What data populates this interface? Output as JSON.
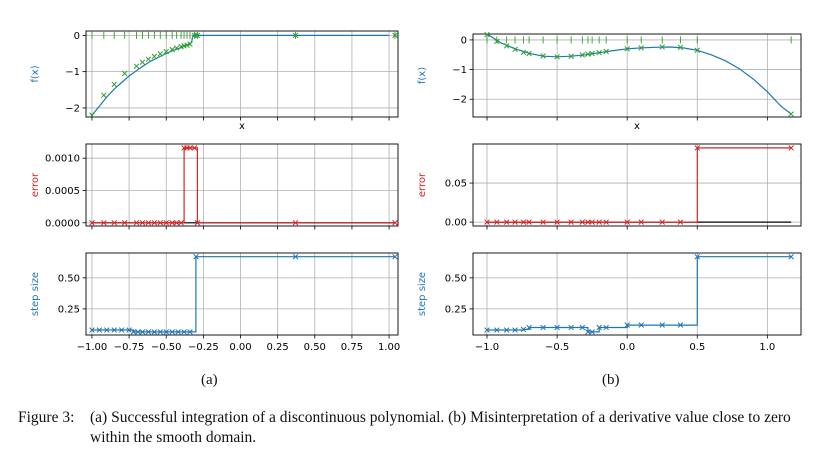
{
  "caption": {
    "label": "Figure 3:",
    "text": "(a) Successful integration of a discontinuous polynomial. (b) Misinterpretation of a derivative value close to zero within the smooth domain."
  },
  "subfigure_labels": [
    "(a)",
    "(b)"
  ],
  "colors": {
    "blue": "#1f77b4",
    "green": "#2ca02c",
    "red": "#d62728",
    "black": "#000000",
    "grid": "#b0b0b0"
  },
  "chart_data": [
    {
      "type": "line",
      "panel": "a-top",
      "ylabel": "f(x)",
      "xlabel": "x",
      "xlim": [
        -1.04,
        1.06
      ],
      "ylim": [
        -2.25,
        0.12
      ],
      "yticks": [
        0,
        -1,
        -2
      ],
      "ytick_labels": [
        "0",
        "−1",
        "−2"
      ],
      "xticks": [
        -1.0,
        -0.75,
        -0.5,
        -0.25,
        0.0,
        0.25,
        0.5,
        0.75,
        1.0
      ],
      "show_xtick_labels": false,
      "series": [
        {
          "kind": "line",
          "color": "blue",
          "x": [
            -1.0,
            -0.95,
            -0.9,
            -0.85,
            -0.8,
            -0.75,
            -0.7,
            -0.65,
            -0.6,
            -0.55,
            -0.5,
            -0.45,
            -0.4,
            -0.38,
            -0.36,
            -0.34,
            -0.33,
            -0.32,
            -0.3,
            0.0,
            0.5,
            1.0
          ],
          "y": [
            -2.2,
            -1.95,
            -1.7,
            -1.48,
            -1.3,
            -1.12,
            -0.97,
            -0.83,
            -0.7,
            -0.6,
            -0.5,
            -0.41,
            -0.34,
            -0.3,
            -0.27,
            -0.22,
            -0.2,
            0.0,
            0.0,
            0.0,
            0.0,
            0.0
          ]
        },
        {
          "kind": "scatter",
          "marker": "x",
          "color": "green",
          "x": [
            -1.0,
            -0.92,
            -0.85,
            -0.78,
            -0.7,
            -0.66,
            -0.62,
            -0.58,
            -0.54,
            -0.5,
            -0.46,
            -0.43,
            -0.4,
            -0.38,
            -0.36,
            -0.34,
            -0.31,
            -0.29,
            0.37,
            1.04
          ],
          "y": [
            -2.2,
            -1.65,
            -1.35,
            -1.05,
            -0.85,
            -0.74,
            -0.66,
            -0.58,
            -0.51,
            -0.45,
            -0.39,
            -0.35,
            -0.31,
            -0.29,
            -0.27,
            -0.24,
            0.0,
            0.0,
            0.0,
            0.0
          ]
        },
        {
          "kind": "scatter",
          "marker": "|",
          "color": "green",
          "x": [
            -1.0,
            -0.92,
            -0.85,
            -0.78,
            -0.7,
            -0.66,
            -0.62,
            -0.58,
            -0.54,
            -0.5,
            -0.46,
            -0.43,
            -0.4,
            -0.38,
            -0.36,
            -0.34,
            -0.31,
            -0.29,
            0.37,
            1.04
          ],
          "y": [
            0,
            0,
            0,
            0,
            0,
            0,
            0,
            0,
            0,
            0,
            0,
            0,
            0,
            0,
            0,
            0,
            0,
            0,
            0,
            0
          ]
        }
      ]
    },
    {
      "type": "line",
      "panel": "a-mid",
      "ylabel": "error",
      "xlim": [
        -1.04,
        1.06
      ],
      "ylim": [
        -5e-05,
        0.00122
      ],
      "yticks": [
        0,
        0.0005,
        0.001
      ],
      "ytick_labels": [
        "0.0000",
        "0.0005",
        "0.0010"
      ],
      "xticks": [
        -1.0,
        -0.75,
        -0.5,
        -0.25,
        0.0,
        0.25,
        0.5,
        0.75,
        1.0
      ],
      "show_xtick_labels": false,
      "series": [
        {
          "kind": "line",
          "color": "black",
          "x": [
            -1.0,
            1.04
          ],
          "y": [
            0,
            0
          ]
        },
        {
          "kind": "step",
          "marker": "x",
          "color": "red",
          "x": [
            -1.0,
            -0.92,
            -0.85,
            -0.78,
            -0.7,
            -0.66,
            -0.62,
            -0.58,
            -0.54,
            -0.5,
            -0.46,
            -0.43,
            -0.4,
            -0.38,
            -0.36,
            -0.34,
            -0.31,
            -0.29,
            0.37,
            1.04
          ],
          "y": [
            0,
            0,
            0,
            0,
            0,
            0,
            0,
            0,
            0,
            0,
            0,
            0,
            0,
            0.00116,
            0.00116,
            0.00116,
            0.00116,
            0,
            0,
            0
          ]
        }
      ]
    },
    {
      "type": "line",
      "panel": "a-bot",
      "ylabel": "step size",
      "xlim": [
        -1.04,
        1.06
      ],
      "ylim": [
        0.04,
        0.7
      ],
      "yticks": [
        0.25,
        0.5
      ],
      "ytick_labels": [
        "0.25",
        "0.50"
      ],
      "xticks": [
        -1.0,
        -0.75,
        -0.5,
        -0.25,
        0.0,
        0.25,
        0.5,
        0.75,
        1.0
      ],
      "xtick_labels": [
        "−1.00",
        "−0.75",
        "−0.50",
        "−0.25",
        "0.00",
        "0.25",
        "0.50",
        "0.75",
        "1.00"
      ],
      "series": [
        {
          "kind": "step",
          "marker": "x",
          "color": "blue",
          "x": [
            -1.0,
            -0.95,
            -0.9,
            -0.85,
            -0.8,
            -0.75,
            -0.72,
            -0.69,
            -0.66,
            -0.62,
            -0.58,
            -0.54,
            -0.5,
            -0.46,
            -0.42,
            -0.38,
            -0.34,
            -0.3,
            0.37,
            1.04
          ],
          "y": [
            0.08,
            0.08,
            0.08,
            0.08,
            0.08,
            0.08,
            0.065,
            0.065,
            0.065,
            0.065,
            0.065,
            0.065,
            0.065,
            0.065,
            0.065,
            0.065,
            0.065,
            0.67,
            0.67,
            0.67
          ]
        }
      ]
    },
    {
      "type": "line",
      "panel": "b-top",
      "ylabel": "f(x)",
      "xlabel": "x",
      "xlim": [
        -1.1,
        1.24
      ],
      "ylim": [
        -2.6,
        0.2
      ],
      "yticks": [
        0,
        -1,
        -2
      ],
      "ytick_labels": [
        "0",
        "−1",
        "−2"
      ],
      "xticks": [
        -1.0,
        -0.5,
        0.0,
        0.5,
        1.0
      ],
      "show_xtick_labels": false,
      "series": [
        {
          "kind": "line",
          "color": "blue",
          "x": [
            -1.0,
            -0.9,
            -0.8,
            -0.7,
            -0.6,
            -0.5,
            -0.4,
            -0.3,
            -0.2,
            -0.1,
            0.0,
            0.1,
            0.2,
            0.3,
            0.4,
            0.5,
            0.6,
            0.7,
            0.8,
            0.9,
            1.0,
            1.1,
            1.17
          ],
          "y": [
            0.2,
            -0.1,
            -0.3,
            -0.45,
            -0.55,
            -0.57,
            -0.55,
            -0.5,
            -0.43,
            -0.36,
            -0.3,
            -0.27,
            -0.25,
            -0.24,
            -0.27,
            -0.35,
            -0.5,
            -0.7,
            -0.97,
            -1.32,
            -1.75,
            -2.25,
            -2.5
          ]
        },
        {
          "kind": "scatter",
          "marker": "x",
          "color": "green",
          "x": [
            -1.0,
            -0.93,
            -0.86,
            -0.8,
            -0.74,
            -0.7,
            -0.6,
            -0.5,
            -0.4,
            -0.32,
            -0.28,
            -0.25,
            -0.2,
            -0.15,
            0.0,
            0.1,
            0.25,
            0.38,
            0.5,
            1.17
          ],
          "y": [
            0.18,
            -0.05,
            -0.2,
            -0.32,
            -0.42,
            -0.46,
            -0.54,
            -0.57,
            -0.55,
            -0.51,
            -0.48,
            -0.46,
            -0.43,
            -0.39,
            -0.3,
            -0.27,
            -0.24,
            -0.25,
            -0.35,
            -2.5
          ]
        },
        {
          "kind": "scatter",
          "marker": "|",
          "color": "green",
          "x": [
            -1.0,
            -0.93,
            -0.86,
            -0.8,
            -0.74,
            -0.7,
            -0.6,
            -0.5,
            -0.4,
            -0.32,
            -0.28,
            -0.25,
            -0.2,
            -0.15,
            0.0,
            0.1,
            0.25,
            0.38,
            0.5,
            1.17
          ],
          "y": [
            0,
            0,
            0,
            0,
            0,
            0,
            0,
            0,
            0,
            0,
            0,
            0,
            0,
            0,
            0,
            0,
            0,
            0,
            0,
            0
          ]
        }
      ]
    },
    {
      "type": "line",
      "panel": "b-mid",
      "ylabel": "error",
      "xlim": [
        -1.1,
        1.24
      ],
      "ylim": [
        -0.005,
        0.1
      ],
      "yticks": [
        0,
        0.05
      ],
      "ytick_labels": [
        "0.00",
        "0.05"
      ],
      "xticks": [
        -1.0,
        -0.5,
        0.0,
        0.5,
        1.0
      ],
      "show_xtick_labels": false,
      "series": [
        {
          "kind": "line",
          "color": "black",
          "x": [
            -1.0,
            1.17
          ],
          "y": [
            0,
            0
          ]
        },
        {
          "kind": "step",
          "marker": "x",
          "color": "red",
          "x": [
            -1.0,
            -0.93,
            -0.86,
            -0.8,
            -0.74,
            -0.7,
            -0.6,
            -0.5,
            -0.4,
            -0.32,
            -0.28,
            -0.25,
            -0.2,
            -0.15,
            0.0,
            0.1,
            0.25,
            0.38,
            0.5,
            1.17
          ],
          "y": [
            0,
            0,
            0,
            0,
            0,
            0,
            0,
            0,
            0,
            0,
            0,
            0,
            0,
            0,
            0,
            0,
            0,
            0,
            0.095,
            0.095
          ]
        }
      ]
    },
    {
      "type": "line",
      "panel": "b-bot",
      "ylabel": "step size",
      "xlim": [
        -1.1,
        1.24
      ],
      "ylim": [
        0.04,
        0.7
      ],
      "yticks": [
        0.25,
        0.5
      ],
      "ytick_labels": [
        "0.25",
        "0.50"
      ],
      "xticks": [
        -1.0,
        -0.5,
        0.0,
        0.5,
        1.0
      ],
      "xtick_labels": [
        "−1.0",
        "−0.5",
        "0.0",
        "0.5",
        "1.0"
      ],
      "series": [
        {
          "kind": "step",
          "marker": "x",
          "color": "blue",
          "x": [
            -1.0,
            -0.93,
            -0.86,
            -0.8,
            -0.74,
            -0.7,
            -0.6,
            -0.5,
            -0.4,
            -0.32,
            -0.28,
            -0.25,
            -0.2,
            -0.15,
            0.0,
            0.1,
            0.25,
            0.38,
            0.5,
            1.17
          ],
          "y": [
            0.08,
            0.08,
            0.08,
            0.08,
            0.085,
            0.1,
            0.1,
            0.1,
            0.1,
            0.1,
            0.065,
            0.065,
            0.1,
            0.1,
            0.12,
            0.12,
            0.12,
            0.12,
            0.67,
            0.67
          ]
        }
      ]
    }
  ]
}
